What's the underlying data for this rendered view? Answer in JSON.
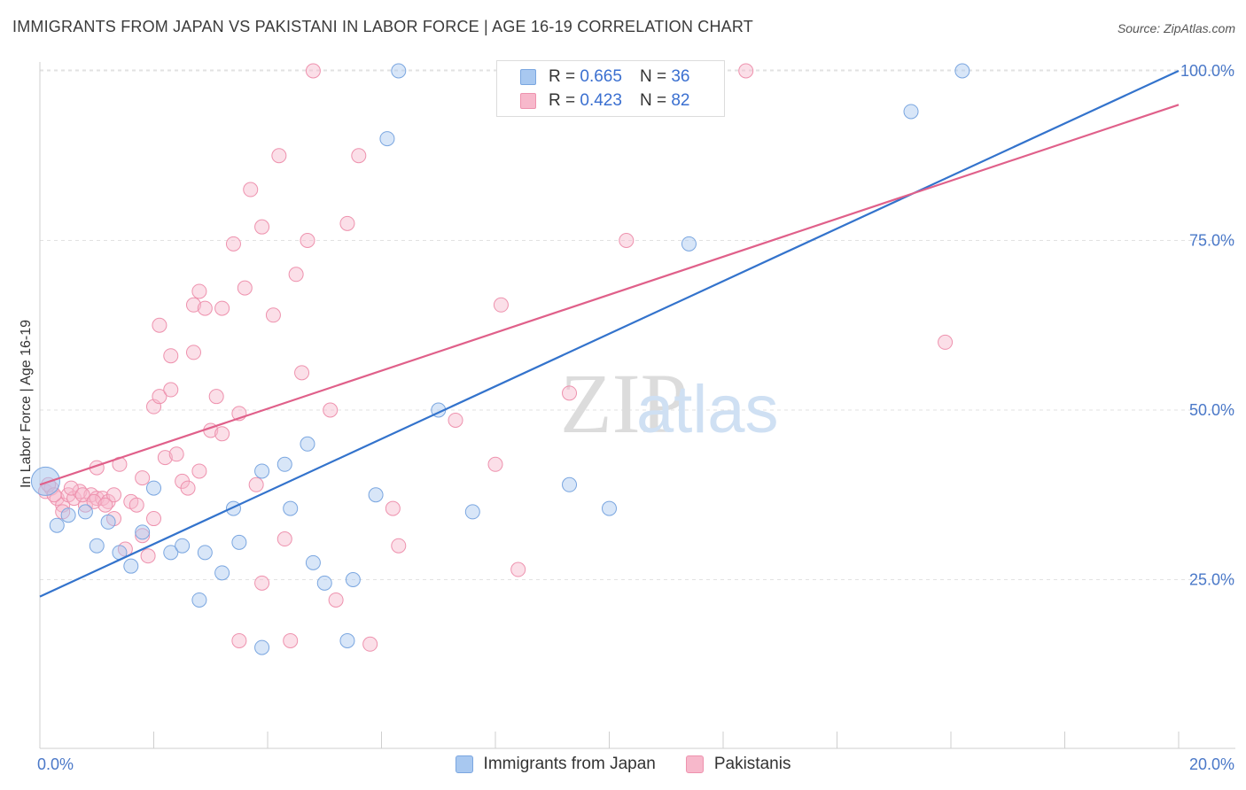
{
  "title": "IMMIGRANTS FROM JAPAN VS PAKISTANI IN LABOR FORCE | AGE 16-19 CORRELATION CHART",
  "source": "Source: ZipAtlas.com",
  "watermark": {
    "zip": "ZIP",
    "atlas": "atlas"
  },
  "legend": {
    "r_label": "R =",
    "n_label": "N =",
    "series": [
      {
        "r": "0.665",
        "n": "36"
      },
      {
        "r": "0.423",
        "n": "82"
      }
    ]
  },
  "colors": {
    "japan_fill": "#a8c8f0",
    "japan_stroke": "#7aa6e0",
    "japan_line": "#3373cc",
    "pakistani_fill": "#f7b8cb",
    "pakistani_stroke": "#ee92ae",
    "pakistani_line": "#e0608a",
    "tick_text": "#4a78c8"
  },
  "chart_data": {
    "type": "scatter",
    "title": "IMMIGRANTS FROM JAPAN VS PAKISTANI IN LABOR FORCE | AGE 16-19 CORRELATION CHART",
    "xlabel": "",
    "ylabel": "In Labor Force | Age 16-19",
    "xlim": [
      0,
      20
    ],
    "ylim": [
      0,
      105
    ],
    "x_ticks": [
      "0.0%",
      "20.0%"
    ],
    "y_ticks": [
      {
        "value": 25,
        "label": "25.0%"
      },
      {
        "value": 50,
        "label": "50.0%"
      },
      {
        "value": 75,
        "label": "75.0%"
      },
      {
        "value": 100,
        "label": "100.0%"
      }
    ],
    "grid": "horizontal dashed",
    "legend_placement": "top-center and bottom",
    "series": [
      {
        "name": "Immigrants from Japan",
        "points": [
          [
            0.1,
            39.5
          ],
          [
            0.3,
            33
          ],
          [
            0.5,
            34.5
          ],
          [
            0.8,
            35
          ],
          [
            1.0,
            30
          ],
          [
            1.2,
            33.5
          ],
          [
            1.4,
            29
          ],
          [
            1.6,
            27
          ],
          [
            1.8,
            32
          ],
          [
            2.0,
            38.5
          ],
          [
            2.3,
            29
          ],
          [
            2.5,
            30
          ],
          [
            2.8,
            22
          ],
          [
            2.9,
            29
          ],
          [
            3.2,
            26
          ],
          [
            3.4,
            35.5
          ],
          [
            3.5,
            30.5
          ],
          [
            3.9,
            15
          ],
          [
            3.9,
            41
          ],
          [
            4.3,
            42
          ],
          [
            4.4,
            35.5
          ],
          [
            4.7,
            45
          ],
          [
            4.8,
            27.5
          ],
          [
            5.0,
            24.5
          ],
          [
            5.4,
            16
          ],
          [
            5.5,
            25
          ],
          [
            5.9,
            37.5
          ],
          [
            6.1,
            90
          ],
          [
            6.3,
            100
          ],
          [
            7.0,
            50
          ],
          [
            7.6,
            35
          ],
          [
            9.3,
            39
          ],
          [
            10.0,
            35.5
          ],
          [
            11.4,
            74.5
          ],
          [
            15.3,
            94
          ],
          [
            16.2,
            100
          ]
        ],
        "trend": [
          [
            0,
            22.5
          ],
          [
            20,
            100
          ]
        ]
      },
      {
        "name": "Pakistanis",
        "points": [
          [
            0.1,
            38
          ],
          [
            0.2,
            38.5
          ],
          [
            0.3,
            37
          ],
          [
            0.4,
            36
          ],
          [
            0.4,
            35
          ],
          [
            0.5,
            37.5
          ],
          [
            0.6,
            37
          ],
          [
            0.7,
            38
          ],
          [
            0.8,
            36
          ],
          [
            0.9,
            37.5
          ],
          [
            1.0,
            37
          ],
          [
            1.0,
            41.5
          ],
          [
            1.1,
            37
          ],
          [
            1.2,
            36.5
          ],
          [
            1.3,
            37.5
          ],
          [
            1.3,
            34
          ],
          [
            1.4,
            42
          ],
          [
            1.5,
            29.5
          ],
          [
            1.6,
            36.5
          ],
          [
            1.7,
            36
          ],
          [
            1.8,
            40
          ],
          [
            1.8,
            31.5
          ],
          [
            1.9,
            28.5
          ],
          [
            2.0,
            50.5
          ],
          [
            2.0,
            34
          ],
          [
            2.1,
            52
          ],
          [
            2.1,
            62.5
          ],
          [
            2.2,
            43
          ],
          [
            2.3,
            58
          ],
          [
            2.3,
            53
          ],
          [
            2.4,
            43.5
          ],
          [
            2.5,
            39.5
          ],
          [
            2.6,
            38.5
          ],
          [
            2.7,
            65.5
          ],
          [
            2.7,
            58.5
          ],
          [
            2.8,
            41
          ],
          [
            2.8,
            67.5
          ],
          [
            2.9,
            65
          ],
          [
            3.0,
            47
          ],
          [
            3.1,
            52
          ],
          [
            3.2,
            46.5
          ],
          [
            3.2,
            65
          ],
          [
            3.4,
            74.5
          ],
          [
            3.5,
            49.5
          ],
          [
            3.5,
            16
          ],
          [
            3.6,
            68
          ],
          [
            3.7,
            82.5
          ],
          [
            3.8,
            39
          ],
          [
            3.9,
            77
          ],
          [
            3.9,
            24.5
          ],
          [
            4.1,
            64
          ],
          [
            4.2,
            87.5
          ],
          [
            4.3,
            31
          ],
          [
            4.4,
            16
          ],
          [
            4.5,
            70
          ],
          [
            4.6,
            55.5
          ],
          [
            4.7,
            75
          ],
          [
            4.8,
            100
          ],
          [
            5.1,
            50
          ],
          [
            5.2,
            22
          ],
          [
            5.4,
            77.5
          ],
          [
            5.6,
            87.5
          ],
          [
            5.8,
            15.5
          ],
          [
            6.2,
            35.5
          ],
          [
            6.3,
            30
          ],
          [
            7.3,
            48.5
          ],
          [
            8.0,
            42
          ],
          [
            8.1,
            65.5
          ],
          [
            8.4,
            26.5
          ],
          [
            9.3,
            52.5
          ],
          [
            9.4,
            100
          ],
          [
            9.7,
            100
          ],
          [
            9.9,
            100
          ],
          [
            10.3,
            75
          ],
          [
            12.4,
            100
          ],
          [
            15.9,
            60
          ],
          [
            0.15,
            39
          ],
          [
            0.25,
            37.5
          ],
          [
            0.55,
            38.5
          ],
          [
            0.75,
            37.5
          ],
          [
            0.95,
            36.5
          ],
          [
            1.15,
            36
          ]
        ],
        "trend": [
          [
            0,
            39
          ],
          [
            20,
            95
          ]
        ]
      }
    ]
  }
}
